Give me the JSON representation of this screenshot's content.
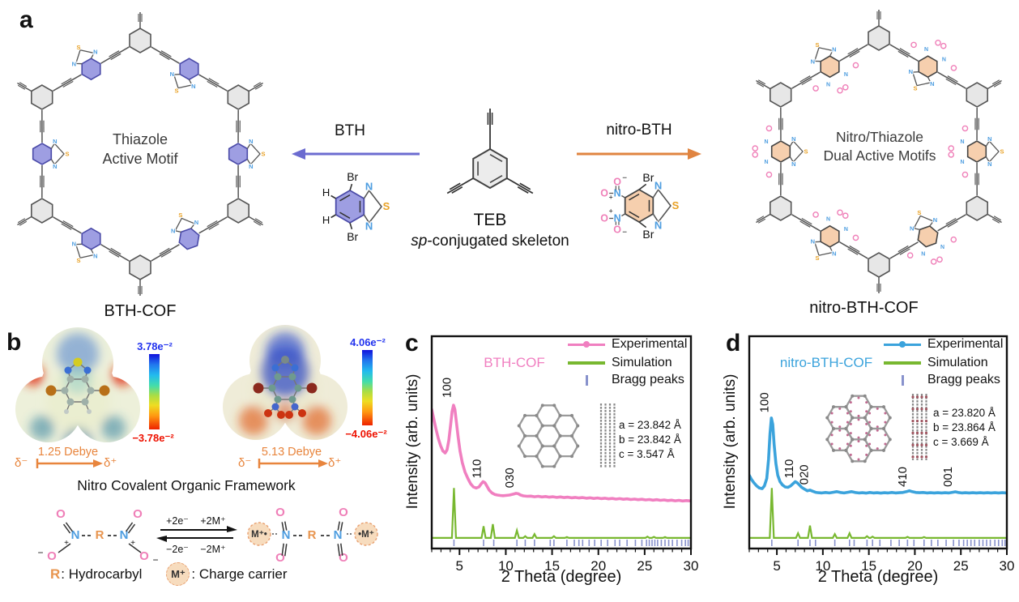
{
  "panel_a": {
    "letter": "a",
    "left_cof": {
      "name": "BTH-COF",
      "center_line1": "Thiazole",
      "center_line2": "Active Motif",
      "ring_fill": "#9e9ee2",
      "ring_stroke": "#4a4aa8"
    },
    "right_cof": {
      "name": "nitro-BTH-COF",
      "center_line1": "Nitro/Thiazole",
      "center_line2": "Dual Active Motifs",
      "ring_fill": "#f6cfae",
      "ring_stroke": "#444444"
    },
    "teb": {
      "name": "TEB",
      "subtitle_italic": "sp",
      "subtitle_rest": "-conjugated skeleton"
    },
    "bth_arrow": {
      "label": "BTH",
      "color": "#6b6bd0"
    },
    "nitro_arrow": {
      "label": "nitro-BTH",
      "color": "#e08440"
    },
    "atoms": {
      "N": "N",
      "S": "S",
      "O": "O",
      "Br": "Br",
      "H": "H",
      "plus": "+",
      "minus": "−"
    },
    "atom_colors": {
      "N": "#4d9de0",
      "S": "#e8a125",
      "O": "#ef7fb8",
      "C": "#222222"
    }
  },
  "panel_b": {
    "letter": "b",
    "esp_left": {
      "cbar_max": "3.78e⁻²",
      "cbar_min": "−3.78e⁻²",
      "dipole": "1.25 Debye",
      "delta_neg": "δ⁻",
      "delta_pos": "δ⁺"
    },
    "esp_right": {
      "cbar_max": "4.06e⁻²",
      "cbar_min": "−4.06e⁻²",
      "dipole": "5.13 Debye",
      "delta_neg": "δ⁻",
      "delta_pos": "δ⁺"
    },
    "heading": "Nitro Covalent Organic Framework",
    "reaction": {
      "o": "O",
      "n": "N",
      "r": "R",
      "plus": "+",
      "minus": "−",
      "m_left": "M⁺•",
      "m_right": "•M⁺",
      "top_left": "+2e⁻",
      "top_right": "+2M⁺",
      "bottom_left": "−2e⁻",
      "bottom_right": "−2M⁺",
      "arrow_color": "#111111"
    },
    "legend": {
      "r": "R",
      "r_text": ": Hydrocarbyl",
      "m": "M⁺",
      "m_text": ": Charge carrier"
    }
  },
  "chart_data": [
    {
      "id": "c",
      "type": "line",
      "letter": "c",
      "title": "BTH-COF",
      "xlabel": "2 Theta (degree)",
      "ylabel": "Intensity (arb. units)",
      "xlim": [
        2,
        30
      ],
      "xticks": [
        5,
        10,
        15,
        20,
        25,
        30
      ],
      "legend": [
        "Experimental",
        "Simulation",
        "Bragg peaks"
      ],
      "exp_color": "#f07fc0",
      "sim_color": "#78b830",
      "bragg_color": "#8892cc",
      "peak_labels": [
        {
          "text": "100",
          "x": 4.05,
          "y": 0.71
        },
        {
          "text": "110",
          "x": 7.3,
          "y": 0.33
        },
        {
          "text": "030",
          "x": 10.85,
          "y": 0.285
        }
      ],
      "lattice": [
        "a = 23.842 Å",
        "b = 23.842 Å",
        "c = 3.547 Å"
      ],
      "experimental": [
        [
          2.0,
          0.655
        ],
        [
          2.2,
          0.615
        ],
        [
          2.45,
          0.565
        ],
        [
          2.7,
          0.52
        ],
        [
          2.95,
          0.485
        ],
        [
          3.2,
          0.46
        ],
        [
          3.45,
          0.45
        ],
        [
          3.65,
          0.465
        ],
        [
          3.85,
          0.51
        ],
        [
          4.05,
          0.585
        ],
        [
          4.2,
          0.645
        ],
        [
          4.35,
          0.675
        ],
        [
          4.5,
          0.655
        ],
        [
          4.65,
          0.6
        ],
        [
          4.85,
          0.525
        ],
        [
          5.05,
          0.46
        ],
        [
          5.3,
          0.405
        ],
        [
          5.6,
          0.36
        ],
        [
          5.9,
          0.33
        ],
        [
          6.2,
          0.305
        ],
        [
          6.5,
          0.29
        ],
        [
          6.8,
          0.285
        ],
        [
          7.1,
          0.29
        ],
        [
          7.35,
          0.305
        ],
        [
          7.55,
          0.315
        ],
        [
          7.75,
          0.31
        ],
        [
          7.95,
          0.295
        ],
        [
          8.2,
          0.275
        ],
        [
          8.5,
          0.262
        ],
        [
          8.8,
          0.255
        ],
        [
          9.1,
          0.252
        ],
        [
          9.4,
          0.25
        ],
        [
          9.7,
          0.249
        ],
        [
          10.0,
          0.25
        ],
        [
          10.4,
          0.252
        ],
        [
          10.8,
          0.256
        ],
        [
          11.1,
          0.26
        ],
        [
          11.35,
          0.258
        ],
        [
          11.6,
          0.252
        ],
        [
          11.9,
          0.248
        ],
        [
          12.3,
          0.246
        ],
        [
          12.7,
          0.247
        ],
        [
          13.1,
          0.244
        ],
        [
          13.5,
          0.246
        ],
        [
          13.9,
          0.243
        ],
        [
          14.3,
          0.245
        ],
        [
          14.7,
          0.242
        ],
        [
          15.1,
          0.244
        ],
        [
          15.5,
          0.241
        ],
        [
          15.9,
          0.243
        ],
        [
          16.3,
          0.24
        ],
        [
          16.7,
          0.242
        ],
        [
          17.1,
          0.239
        ],
        [
          17.5,
          0.241
        ],
        [
          17.9,
          0.238
        ],
        [
          18.3,
          0.24
        ],
        [
          18.7,
          0.237
        ],
        [
          19.1,
          0.239
        ],
        [
          19.5,
          0.236
        ],
        [
          19.9,
          0.238
        ],
        [
          20.3,
          0.235
        ],
        [
          20.7,
          0.237
        ],
        [
          21.1,
          0.234
        ],
        [
          21.5,
          0.236
        ],
        [
          21.9,
          0.233
        ],
        [
          22.3,
          0.235
        ],
        [
          22.7,
          0.232
        ],
        [
          23.1,
          0.234
        ],
        [
          23.5,
          0.231
        ],
        [
          23.9,
          0.233
        ],
        [
          24.3,
          0.23
        ],
        [
          24.7,
          0.232
        ],
        [
          25.1,
          0.229
        ],
        [
          25.5,
          0.231
        ],
        [
          25.9,
          0.228
        ],
        [
          26.3,
          0.23
        ],
        [
          26.7,
          0.227
        ],
        [
          27.1,
          0.229
        ],
        [
          27.5,
          0.226
        ],
        [
          27.9,
          0.228
        ],
        [
          28.3,
          0.225
        ],
        [
          28.7,
          0.227
        ],
        [
          29.1,
          0.224
        ],
        [
          29.5,
          0.226
        ],
        [
          30.0,
          0.224
        ]
      ],
      "sim_baseline": 0.05,
      "sim_peaks": [
        [
          4.4,
          0.285
        ],
        [
          7.6,
          0.105
        ],
        [
          8.6,
          0.115
        ],
        [
          11.2,
          0.085
        ],
        [
          12.1,
          0.058
        ],
        [
          13.1,
          0.068
        ],
        [
          15.2,
          0.058
        ],
        [
          16.6,
          0.054
        ],
        [
          25.3,
          0.056
        ],
        [
          26.0,
          0.055
        ],
        [
          27.2,
          0.054
        ]
      ],
      "bragg": [
        4.4,
        7.6,
        8.7,
        11.2,
        12.1,
        13.1,
        14.8,
        15.2,
        16.6,
        17.4,
        17.9,
        18.3,
        19.0,
        19.6,
        20.3,
        21.0,
        21.8,
        22.3,
        23.1,
        24.0,
        24.7,
        25.2,
        25.5,
        25.8,
        26.1,
        26.4,
        26.8,
        27.2,
        27.6,
        28.0,
        28.5,
        29.0,
        29.4,
        29.7,
        29.95
      ]
    },
    {
      "id": "d",
      "type": "line",
      "letter": "d",
      "title": "nitro-BTH-COF",
      "xlabel": "2 Theta (degree)",
      "ylabel": "Intensity (arb. units)",
      "xlim": [
        2,
        30
      ],
      "xticks": [
        5,
        10,
        15,
        20,
        25,
        30
      ],
      "legend": [
        "Experimental",
        "Simulation",
        "Bragg peaks"
      ],
      "exp_color": "#3ba3dc",
      "sim_color": "#78b830",
      "bragg_color": "#8892cc",
      "peak_labels": [
        {
          "text": "100",
          "x": 4.05,
          "y": 0.64
        },
        {
          "text": "110",
          "x": 6.75,
          "y": 0.33
        },
        {
          "text": "020",
          "x": 8.4,
          "y": 0.3
        },
        {
          "text": "410",
          "x": 19.1,
          "y": 0.29
        },
        {
          "text": "001",
          "x": 24.0,
          "y": 0.29
        }
      ],
      "lattice": [
        "a = 23.820 Å",
        "b = 23.864 Å",
        "c = 3.669 Å"
      ],
      "experimental": [
        [
          2.0,
          0.345
        ],
        [
          2.25,
          0.325
        ],
        [
          2.5,
          0.31
        ],
        [
          2.8,
          0.295
        ],
        [
          3.1,
          0.285
        ],
        [
          3.4,
          0.282
        ],
        [
          3.65,
          0.295
        ],
        [
          3.9,
          0.33
        ],
        [
          4.1,
          0.42
        ],
        [
          4.25,
          0.54
        ],
        [
          4.4,
          0.615
        ],
        [
          4.55,
          0.585
        ],
        [
          4.7,
          0.49
        ],
        [
          4.9,
          0.4
        ],
        [
          5.1,
          0.345
        ],
        [
          5.35,
          0.315
        ],
        [
          5.6,
          0.3
        ],
        [
          5.9,
          0.29
        ],
        [
          6.2,
          0.288
        ],
        [
          6.5,
          0.295
        ],
        [
          6.75,
          0.305
        ],
        [
          7.0,
          0.315
        ],
        [
          7.2,
          0.31
        ],
        [
          7.45,
          0.3
        ],
        [
          7.7,
          0.288
        ],
        [
          8.0,
          0.28
        ],
        [
          8.3,
          0.272
        ],
        [
          8.6,
          0.275
        ],
        [
          8.9,
          0.27
        ],
        [
          9.2,
          0.265
        ],
        [
          9.5,
          0.263
        ],
        [
          9.9,
          0.262
        ],
        [
          10.3,
          0.264
        ],
        [
          10.7,
          0.262
        ],
        [
          11.1,
          0.265
        ],
        [
          11.5,
          0.268
        ],
        [
          11.9,
          0.264
        ],
        [
          12.3,
          0.262
        ],
        [
          12.7,
          0.265
        ],
        [
          13.1,
          0.268
        ],
        [
          13.5,
          0.264
        ],
        [
          13.9,
          0.262
        ],
        [
          14.3,
          0.263
        ],
        [
          14.7,
          0.261
        ],
        [
          15.1,
          0.264
        ],
        [
          15.5,
          0.262
        ],
        [
          15.9,
          0.263
        ],
        [
          16.3,
          0.261
        ],
        [
          16.7,
          0.263
        ],
        [
          17.1,
          0.262
        ],
        [
          17.5,
          0.264
        ],
        [
          17.9,
          0.262
        ],
        [
          18.3,
          0.263
        ],
        [
          18.7,
          0.264
        ],
        [
          19.1,
          0.268
        ],
        [
          19.4,
          0.272
        ],
        [
          19.7,
          0.268
        ],
        [
          20.1,
          0.264
        ],
        [
          20.5,
          0.263
        ],
        [
          20.9,
          0.264
        ],
        [
          21.3,
          0.262
        ],
        [
          21.7,
          0.263
        ],
        [
          22.1,
          0.262
        ],
        [
          22.5,
          0.263
        ],
        [
          22.9,
          0.262
        ],
        [
          23.3,
          0.263
        ],
        [
          23.7,
          0.262
        ],
        [
          24.1,
          0.265
        ],
        [
          24.4,
          0.267
        ],
        [
          24.7,
          0.264
        ],
        [
          25.1,
          0.262
        ],
        [
          25.5,
          0.263
        ],
        [
          25.9,
          0.262
        ],
        [
          26.3,
          0.263
        ],
        [
          26.7,
          0.262
        ],
        [
          27.1,
          0.263
        ],
        [
          27.5,
          0.262
        ],
        [
          27.9,
          0.263
        ],
        [
          28.3,
          0.262
        ],
        [
          28.7,
          0.263
        ],
        [
          29.1,
          0.262
        ],
        [
          29.5,
          0.263
        ],
        [
          30.0,
          0.262
        ]
      ],
      "sim_baseline": 0.05,
      "sim_peaks": [
        [
          4.45,
          0.285
        ],
        [
          7.3,
          0.072
        ],
        [
          8.6,
          0.108
        ],
        [
          11.3,
          0.068
        ],
        [
          12.9,
          0.072
        ],
        [
          14.8,
          0.058
        ],
        [
          15.4,
          0.056
        ],
        [
          19.2,
          0.055
        ],
        [
          21.0,
          0.054
        ]
      ],
      "bragg": [
        4.45,
        7.3,
        8.6,
        9.2,
        11.3,
        12.9,
        13.4,
        14.8,
        15.4,
        16.2,
        17.4,
        18.3,
        19.2,
        19.9,
        21.0,
        21.8,
        22.5,
        23.4,
        24.2,
        24.8,
        25.3,
        25.7,
        26.1,
        26.5,
        27.0,
        27.4,
        27.8,
        28.2,
        28.7,
        29.1,
        29.5,
        29.8
      ]
    }
  ]
}
